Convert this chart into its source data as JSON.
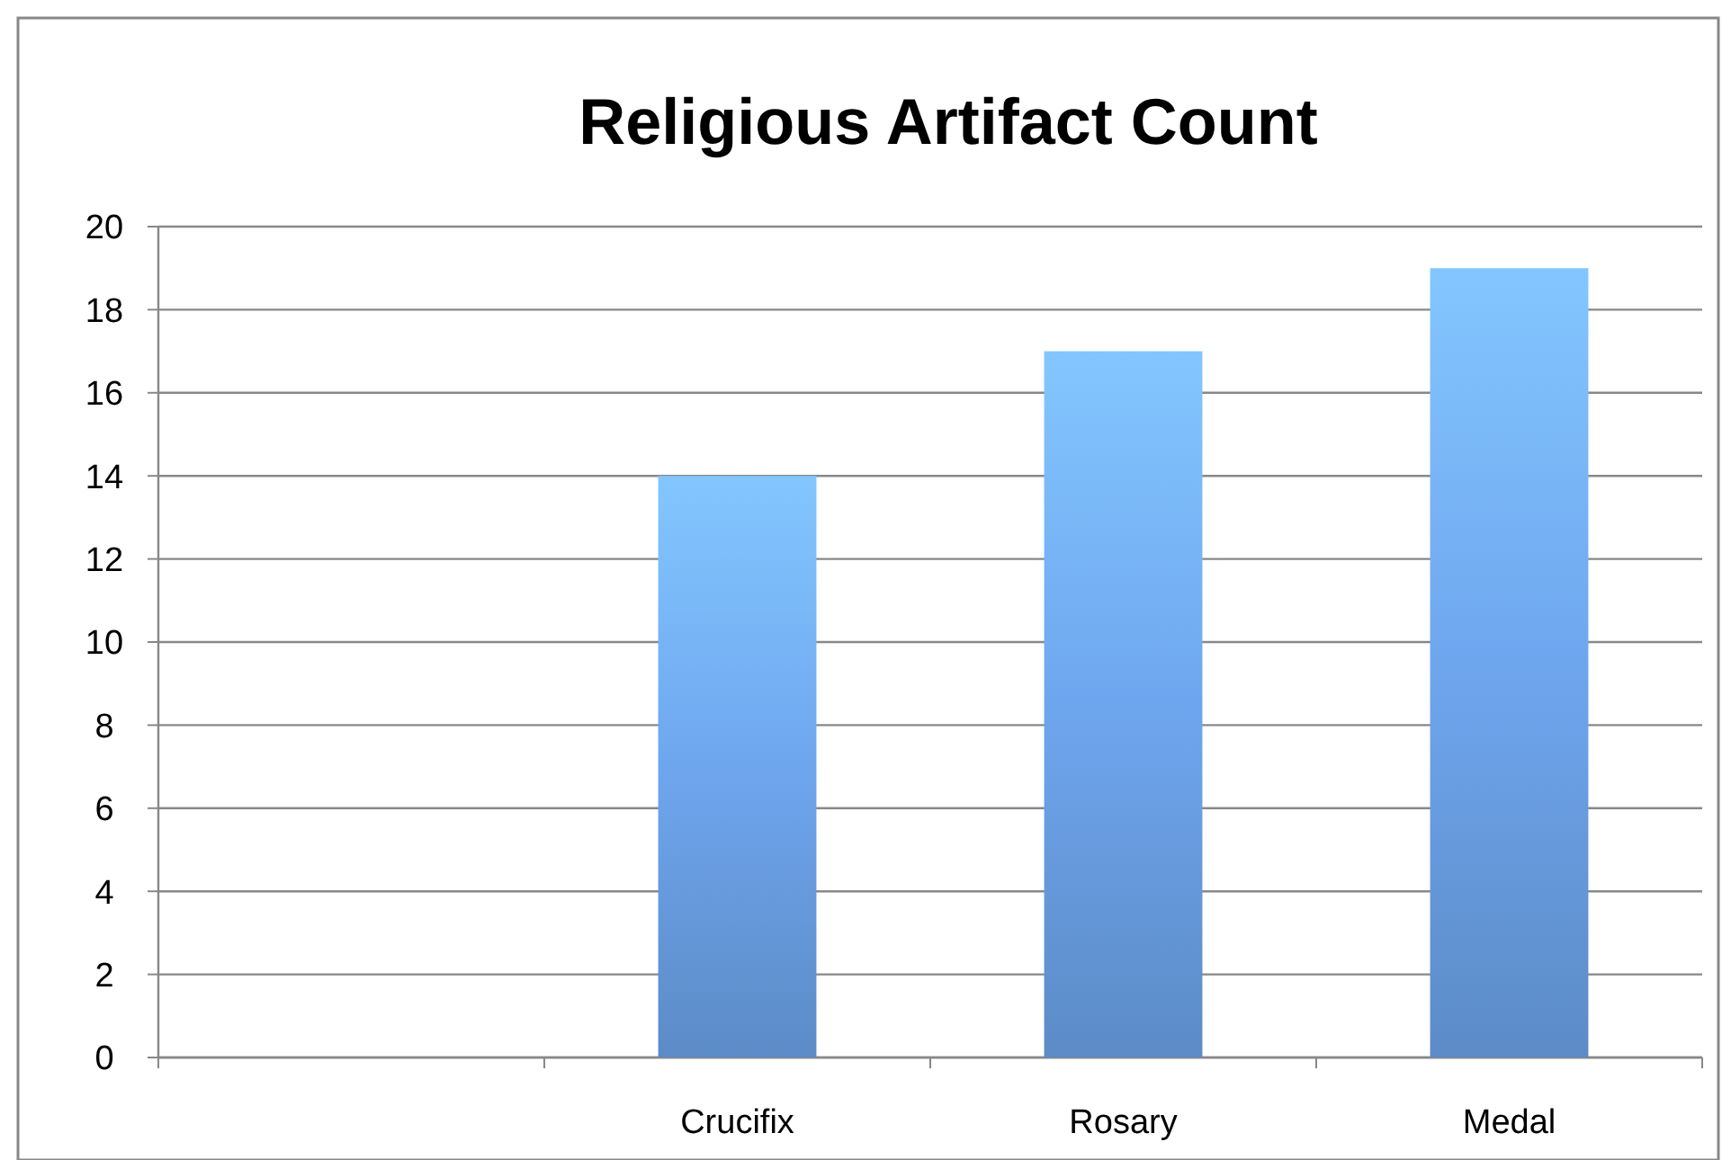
{
  "chart_data": {
    "type": "bar",
    "title": "Religious Artifact Count",
    "categories": [
      null,
      "Crucifix",
      "Rosary",
      "Medal"
    ],
    "values": [
      null,
      14,
      17,
      19
    ],
    "color": "#6ea6ee",
    "ylim": [
      0,
      20
    ],
    "yticks": [
      0,
      2,
      4,
      6,
      8,
      10,
      12,
      14,
      16,
      18,
      20
    ],
    "grid": "y"
  }
}
